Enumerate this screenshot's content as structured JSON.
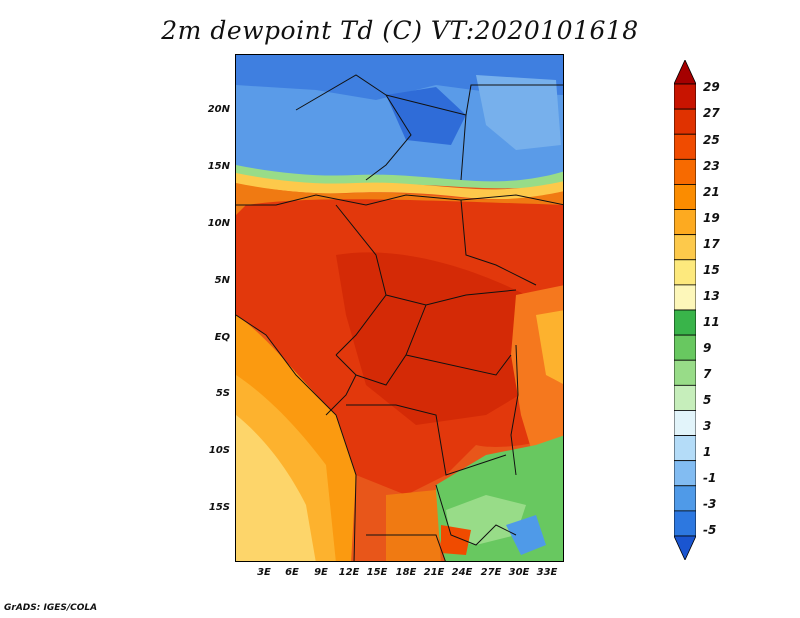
{
  "title": "2m dewpoint Td (C) VT:2020101618",
  "footer": "GrADS: IGES/COLA",
  "lat_labels": [
    "20N",
    "15N",
    "10N",
    "5N",
    "EQ",
    "5S",
    "10S",
    "15S"
  ],
  "lon_labels": [
    "3E",
    "6E",
    "9E",
    "12E",
    "15E",
    "18E",
    "21E",
    "24E",
    "27E",
    "30E",
    "33E"
  ],
  "colorbar": {
    "labels": [
      "29",
      "27",
      "25",
      "23",
      "21",
      "19",
      "17",
      "15",
      "13",
      "11",
      "9",
      "7",
      "5",
      "3",
      "1",
      "-1",
      "-3",
      "-5"
    ],
    "colors": [
      "#a50000",
      "#c81400",
      "#e03200",
      "#f04b00",
      "#f76a00",
      "#fb8c00",
      "#fdaa20",
      "#fdc94b",
      "#fde97d",
      "#fdf7ba",
      "#39b44a",
      "#68c860",
      "#98dc88",
      "#c6eebb",
      "#e2f4fa",
      "#b4dcf8",
      "#82bcf2",
      "#4f9ae8",
      "#2d78e0",
      "#1a55d0"
    ]
  }
}
